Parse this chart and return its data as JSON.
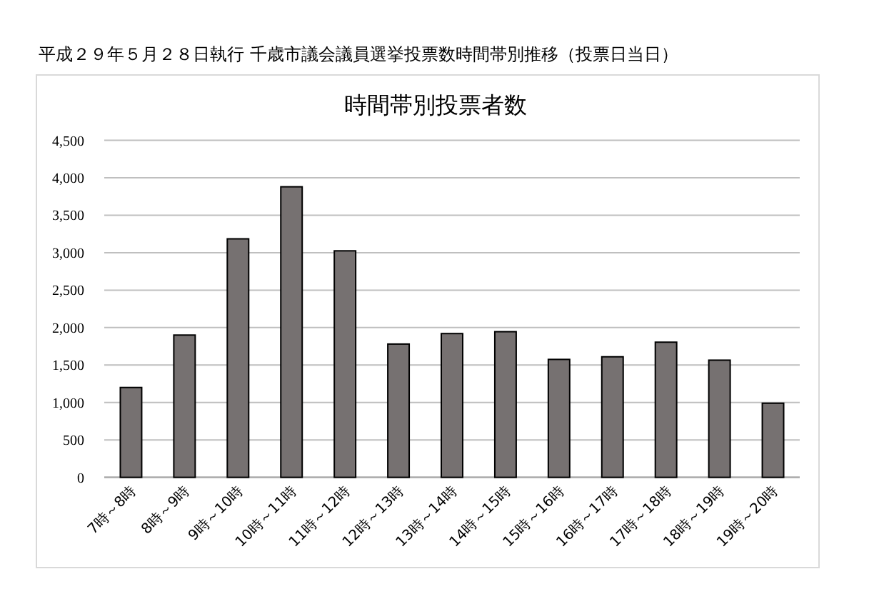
{
  "chart_data": {
    "type": "bar",
    "title": "時間帯別投票者数",
    "subtitle": "平成２９年５月２８日執行 千歳市議会議員選挙投票数時間帯別推移（投票日当日）",
    "categories": [
      "7時～8時",
      "8時～9時",
      "9時～10時",
      "10時～11時",
      "11時～12時",
      "12時～13時",
      "13時～14時",
      "14時～15時",
      "15時～16時",
      "16時～17時",
      "17時～18時",
      "18時～19時",
      "19時～20時"
    ],
    "values": [
      1200,
      1900,
      3185,
      3880,
      3025,
      1780,
      1920,
      1945,
      1575,
      1610,
      1805,
      1565,
      990
    ],
    "color": "#767171",
    "ylim": [
      0,
      4500
    ],
    "yticks": [
      {
        "value": 0,
        "label": "0"
      },
      {
        "value": 500,
        "label": "500"
      },
      {
        "value": 1000,
        "label": "1,000"
      },
      {
        "value": 1500,
        "label": "1,500"
      },
      {
        "value": 2000,
        "label": "2,000"
      },
      {
        "value": 2500,
        "label": "2,500"
      },
      {
        "value": 3000,
        "label": "3,000"
      },
      {
        "value": 3500,
        "label": "3,500"
      },
      {
        "value": 4000,
        "label": "4,000"
      },
      {
        "value": 4500,
        "label": "4,500"
      }
    ],
    "grid": "y"
  }
}
